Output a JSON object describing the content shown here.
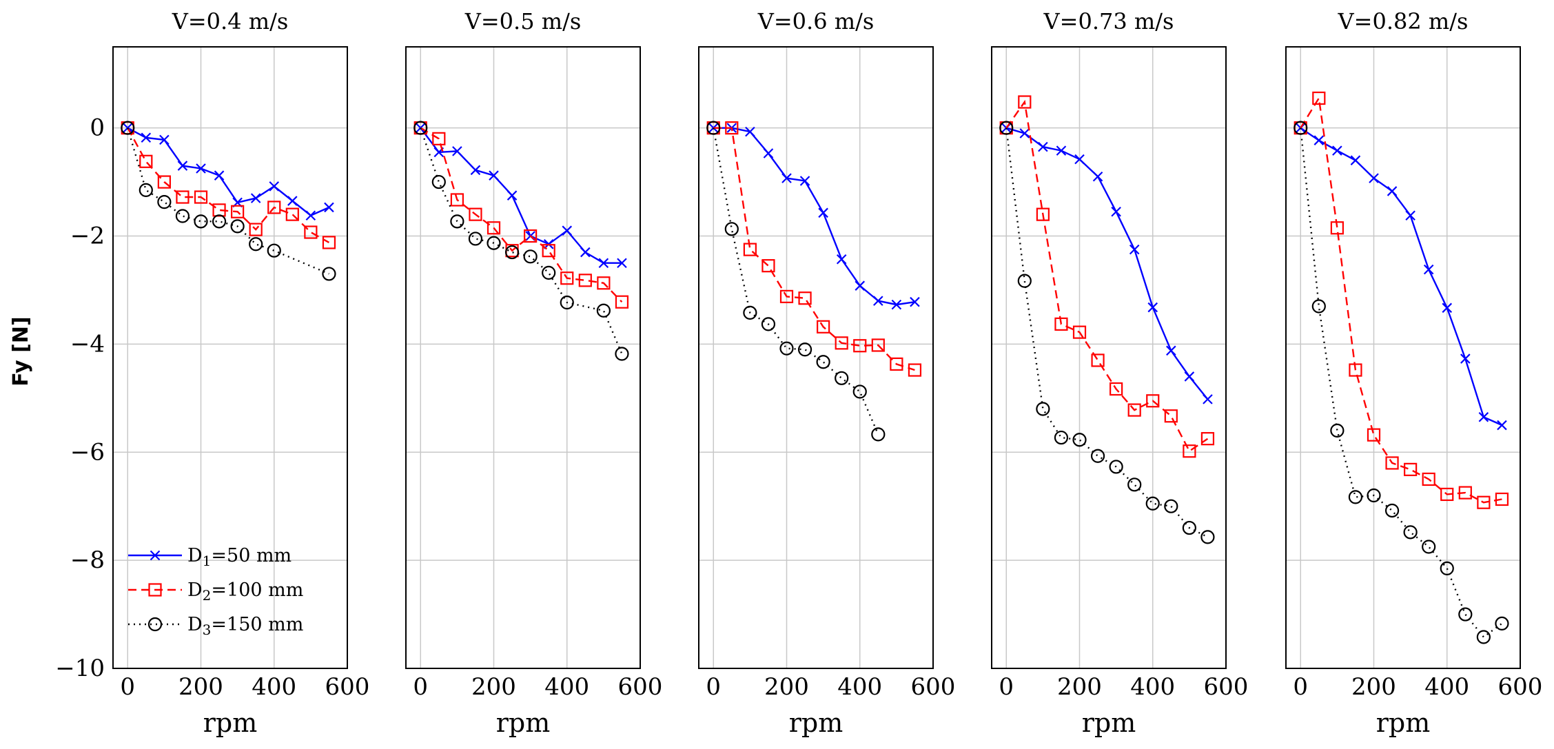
{
  "chart_data": {
    "type": "line",
    "ylabel": "Fy [N]",
    "xlabel": "rpm",
    "xlim": [
      -40,
      600
    ],
    "ylim": [
      -10,
      1.5
    ],
    "xticks": [
      "0",
      "200",
      "400",
      "600"
    ],
    "yticks": [
      "0",
      "−2",
      "−4",
      "−6",
      "−8",
      "−10"
    ],
    "legend_location": "lower-left of first panel",
    "series_styles": [
      {
        "name": "D1",
        "color": "#0000ff",
        "marker": "x",
        "line": "solid"
      },
      {
        "name": "D2",
        "color": "#ff0000",
        "marker": "square",
        "line": "dashed"
      },
      {
        "name": "D3",
        "color": "#000000",
        "marker": "circle",
        "line": "dotted"
      }
    ],
    "legend": {
      "entries": [
        {
          "sym": "D",
          "sub": "1",
          "text": "=50  mm"
        },
        {
          "sym": "D",
          "sub": "2",
          "text": "=100  mm"
        },
        {
          "sym": "D",
          "sub": "3",
          "text": "=150  mm"
        }
      ]
    },
    "panels": [
      {
        "title": "V=0.4  m/s",
        "series": [
          {
            "name": "D1=50 mm",
            "x": [
              0,
              50,
              100,
              150,
              200,
              250,
              300,
              350,
              400,
              450,
              500,
              550
            ],
            "y": [
              0,
              -0.18,
              -0.22,
              -0.7,
              -0.75,
              -0.88,
              -1.38,
              -1.3,
              -1.08,
              -1.35,
              -1.62,
              -1.47
            ]
          },
          {
            "name": "D2=100 mm",
            "x": [
              0,
              50,
              100,
              150,
              200,
              250,
              300,
              350,
              400,
              450,
              500,
              550
            ],
            "y": [
              0,
              -0.62,
              -1.0,
              -1.28,
              -1.28,
              -1.52,
              -1.55,
              -1.88,
              -1.47,
              -1.6,
              -1.93,
              -2.12
            ]
          },
          {
            "name": "D3=150 mm",
            "x": [
              0,
              50,
              100,
              150,
              200,
              250,
              300,
              350,
              400,
              550
            ],
            "y": [
              0,
              -1.15,
              -1.37,
              -1.63,
              -1.73,
              -1.73,
              -1.82,
              -2.15,
              -2.27,
              -2.7
            ]
          }
        ]
      },
      {
        "title": "V=0.5 m/s",
        "series": [
          {
            "name": "D1=50 mm",
            "x": [
              0,
              50,
              100,
              150,
              200,
              250,
              300,
              350,
              400,
              450,
              500,
              550
            ],
            "y": [
              0,
              -0.45,
              -0.43,
              -0.78,
              -0.88,
              -1.25,
              -2.0,
              -2.15,
              -1.9,
              -2.3,
              -2.5,
              -2.5
            ]
          },
          {
            "name": "D2=100 mm",
            "x": [
              0,
              50,
              100,
              150,
              200,
              250,
              300,
              350,
              400,
              450,
              500,
              550
            ],
            "y": [
              0,
              -0.2,
              -1.33,
              -1.6,
              -1.85,
              -2.27,
              -2.0,
              -2.27,
              -2.78,
              -2.82,
              -2.87,
              -3.22
            ]
          },
          {
            "name": "D3=150 mm",
            "x": [
              0,
              50,
              100,
              150,
              200,
              250,
              300,
              350,
              400,
              500,
              550
            ],
            "y": [
              0,
              -1.0,
              -1.73,
              -2.05,
              -2.13,
              -2.3,
              -2.38,
              -2.68,
              -3.23,
              -3.38,
              -4.18
            ]
          }
        ]
      },
      {
        "title": "V=0.6 m/s",
        "series": [
          {
            "name": "D1=50 mm",
            "x": [
              0,
              50,
              100,
              150,
              200,
              250,
              300,
              350,
              400,
              450,
              500,
              550
            ],
            "y": [
              0,
              0,
              -0.07,
              -0.47,
              -0.93,
              -0.98,
              -1.57,
              -2.43,
              -2.92,
              -3.2,
              -3.27,
              -3.22
            ]
          },
          {
            "name": "D2=100 mm",
            "x": [
              0,
              50,
              100,
              150,
              200,
              250,
              300,
              350,
              400,
              450,
              500,
              550
            ],
            "y": [
              0,
              0,
              -2.25,
              -2.55,
              -3.12,
              -3.15,
              -3.68,
              -3.98,
              -4.03,
              -4.02,
              -4.37,
              -4.48
            ]
          },
          {
            "name": "D3=150 mm",
            "x": [
              0,
              50,
              100,
              150,
              200,
              250,
              300,
              350,
              400,
              450
            ],
            "y": [
              0,
              -1.87,
              -3.42,
              -3.63,
              -4.08,
              -4.1,
              -4.33,
              -4.63,
              -4.88,
              -5.67
            ]
          }
        ]
      },
      {
        "title": "V=0.73 m/s",
        "series": [
          {
            "name": "D1=50 mm",
            "x": [
              0,
              50,
              100,
              150,
              200,
              250,
              300,
              350,
              400,
              450,
              500,
              550
            ],
            "y": [
              0,
              -0.1,
              -0.35,
              -0.42,
              -0.58,
              -0.9,
              -1.55,
              -2.25,
              -3.32,
              -4.12,
              -4.6,
              -5.02
            ]
          },
          {
            "name": "D2=100 mm",
            "x": [
              0,
              50,
              100,
              150,
              200,
              250,
              300,
              350,
              400,
              450,
              500,
              550
            ],
            "y": [
              0,
              0.48,
              -1.6,
              -3.63,
              -3.78,
              -4.3,
              -4.83,
              -5.22,
              -5.05,
              -5.33,
              -5.98,
              -5.75
            ]
          },
          {
            "name": "D3=150 mm",
            "x": [
              0,
              50,
              100,
              150,
              200,
              250,
              300,
              350,
              400,
              450,
              500,
              550
            ],
            "y": [
              0,
              -2.83,
              -5.2,
              -5.73,
              -5.77,
              -6.07,
              -6.27,
              -6.6,
              -6.95,
              -7.0,
              -7.4,
              -7.57
            ]
          }
        ]
      },
      {
        "title": "V=0.82 m/s",
        "series": [
          {
            "name": "D1=50 mm",
            "x": [
              0,
              50,
              100,
              150,
              200,
              250,
              300,
              350,
              400,
              450,
              500,
              550
            ],
            "y": [
              0,
              -0.23,
              -0.42,
              -0.6,
              -0.93,
              -1.17,
              -1.62,
              -2.62,
              -3.33,
              -4.27,
              -5.35,
              -5.5
            ]
          },
          {
            "name": "D2=100 mm",
            "x": [
              0,
              50,
              100,
              150,
              200,
              250,
              300,
              350,
              400,
              450,
              500,
              550
            ],
            "y": [
              0,
              0.55,
              -1.85,
              -4.48,
              -5.68,
              -6.2,
              -6.32,
              -6.5,
              -6.78,
              -6.75,
              -6.93,
              -6.87
            ]
          },
          {
            "name": "D3=150 mm",
            "x": [
              0,
              50,
              100,
              150,
              200,
              250,
              300,
              350,
              400,
              450,
              500,
              550
            ],
            "y": [
              0,
              -3.3,
              -5.6,
              -6.83,
              -6.8,
              -7.08,
              -7.48,
              -7.75,
              -8.15,
              -9.0,
              -9.42,
              -9.17
            ]
          }
        ]
      }
    ]
  }
}
